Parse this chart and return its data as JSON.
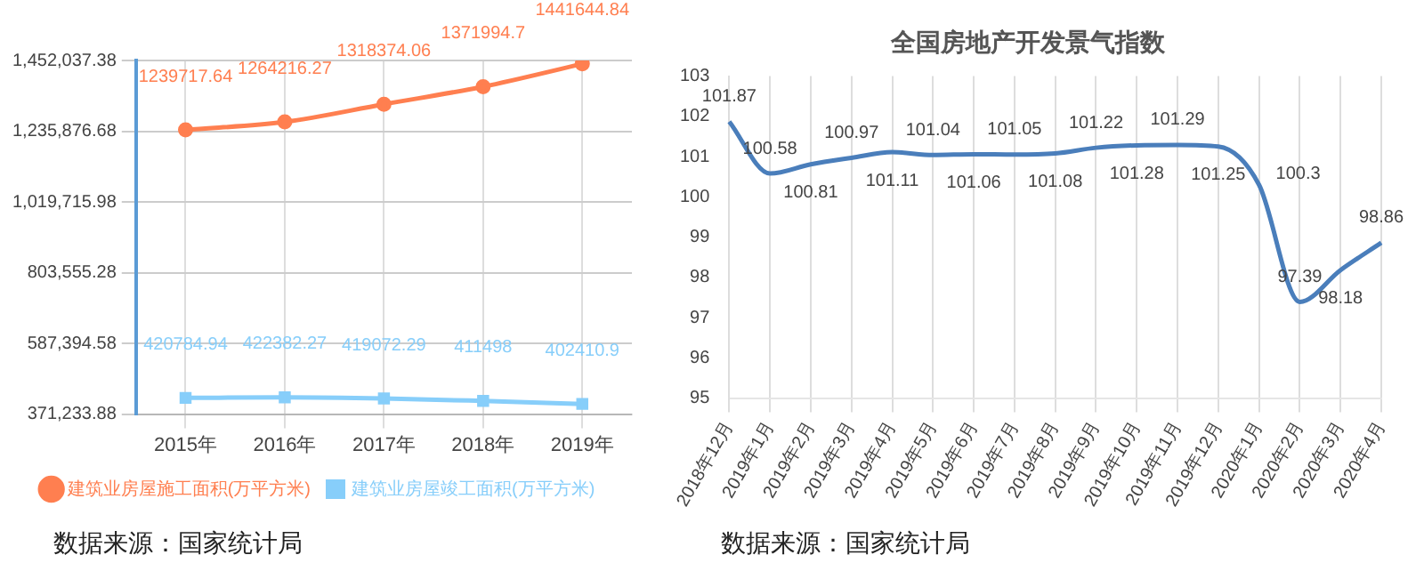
{
  "chart_data": [
    {
      "type": "line",
      "categories": [
        "2015年",
        "2016年",
        "2017年",
        "2018年",
        "2019年"
      ],
      "series": [
        {
          "name": "建筑业房屋施工面积(万平方米)",
          "color": "#ff7f50",
          "marker": "circle",
          "values": [
            1239717.64,
            1264216.27,
            1318374.06,
            1371994.7,
            1441644.84
          ]
        },
        {
          "name": "建筑业房屋竣工面积(万平方米)",
          "color": "#87cefa",
          "marker": "square",
          "values": [
            420784.94,
            422382.27,
            419072.29,
            411498,
            402410.9
          ]
        }
      ],
      "ylim": [
        371233.88,
        1452037.38
      ],
      "yticks": [
        {
          "value": 371233.88,
          "label": "371,233.88"
        },
        {
          "value": 587394.58,
          "label": "587,394.58"
        },
        {
          "value": 803555.28,
          "label": "803,555.28"
        },
        {
          "value": 1019715.98,
          "label": "1,019,715.98"
        },
        {
          "value": 1235876.68,
          "label": "1,235,876.68"
        },
        {
          "value": 1452037.38,
          "label": "1,452,037.38"
        }
      ],
      "grid": true,
      "legend": "bottom",
      "data_labels": true,
      "annotations": [
        "数据来源：国家统计局"
      ]
    },
    {
      "type": "line",
      "title": "全国房地产开发景气指数",
      "categories": [
        "2018年12月",
        "2019年1月",
        "2019年2月",
        "2019年3月",
        "2019年4月",
        "2019年5月",
        "2019年6月",
        "2019年7月",
        "2019年8月",
        "2019年9月",
        "2019年10月",
        "2019年11月",
        "2019年12月",
        "2020年1月",
        "2020年2月",
        "2020年3月",
        "2020年4月"
      ],
      "series": [
        {
          "color": "#4a7ebb",
          "marker": "none",
          "values": [
            101.87,
            100.58,
            100.81,
            100.97,
            101.11,
            101.04,
            101.06,
            101.05,
            101.08,
            101.22,
            101.28,
            101.29,
            101.25,
            100.3,
            97.39,
            98.18,
            98.86
          ]
        }
      ],
      "ylim": [
        95,
        103
      ],
      "yticks": [
        95,
        96,
        97,
        98,
        99,
        100,
        101,
        102,
        103
      ],
      "grid": "x",
      "legend": false,
      "data_labels": true,
      "annotations": [
        "数据来源：国家统计局"
      ]
    }
  ]
}
